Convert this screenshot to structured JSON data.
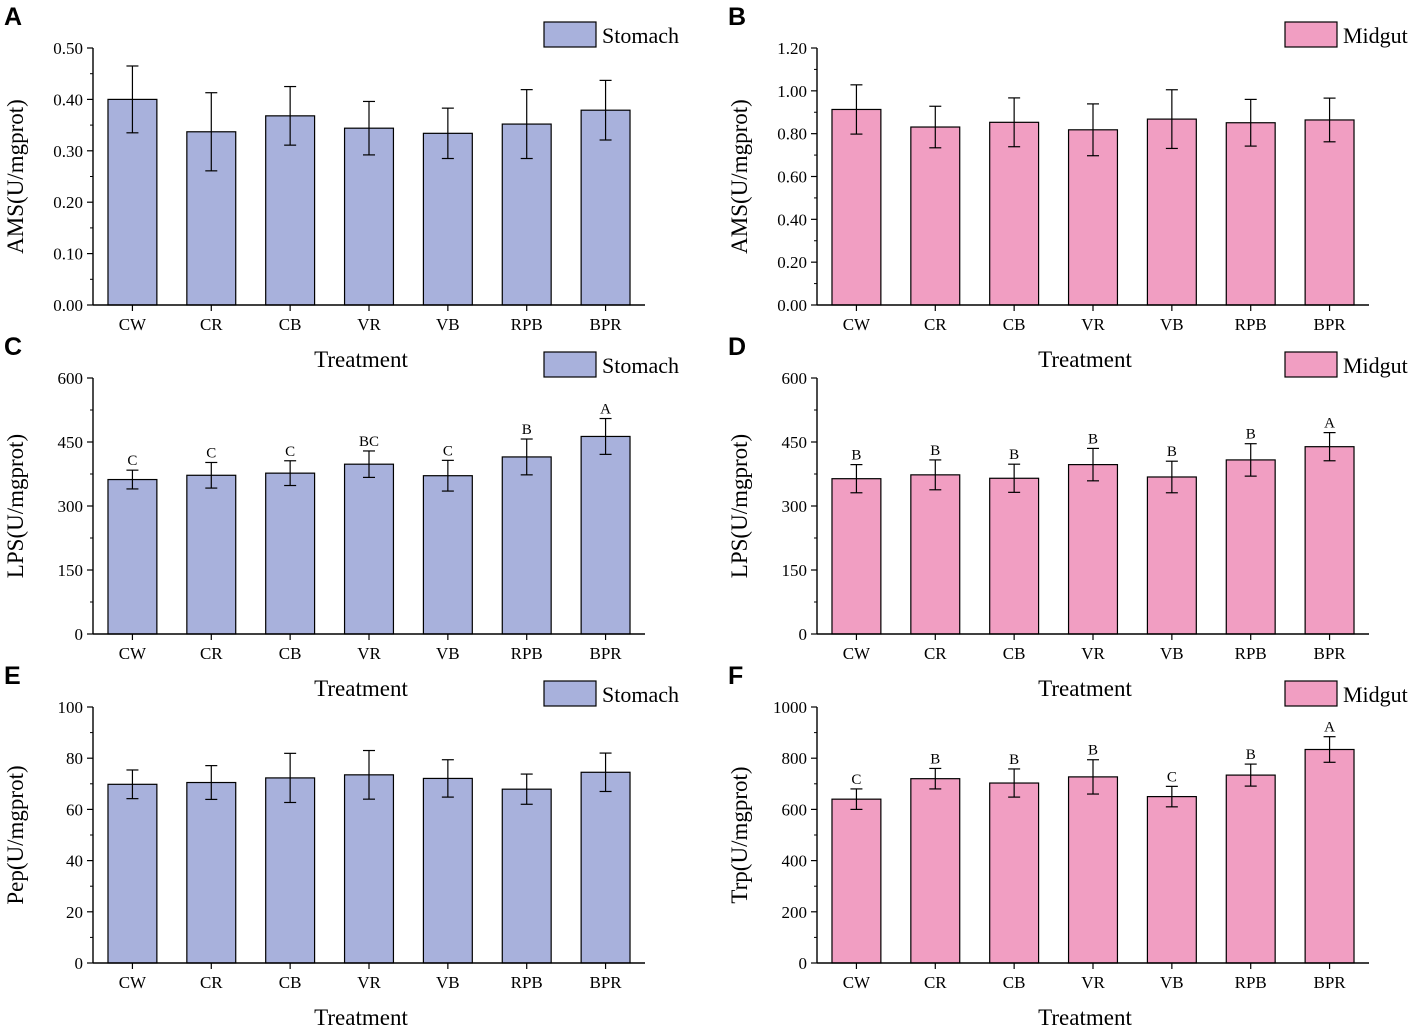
{
  "chart_data": [
    {
      "panel": "A",
      "type": "bar",
      "title": "",
      "legend": "Stomach",
      "color": "#a8b1dc",
      "xlabel": "Treatment",
      "ylabel": "AMS(U/mgprot)",
      "categories": [
        "CW",
        "CR",
        "CB",
        "VR",
        "VB",
        "RPB",
        "BPR"
      ],
      "values": [
        0.4,
        0.337,
        0.368,
        0.344,
        0.334,
        0.352,
        0.379
      ],
      "errors": [
        0.065,
        0.076,
        0.057,
        0.052,
        0.049,
        0.067,
        0.058
      ],
      "letters": [
        "",
        "",
        "",
        "",
        "",
        "",
        ""
      ],
      "ylim": [
        0,
        0.5
      ],
      "yticks": [
        "0.00",
        "0.10",
        "0.20",
        "0.30",
        "0.40",
        "0.50"
      ],
      "yticks_values": [
        0,
        0.1,
        0.2,
        0.3,
        0.4,
        0.5
      ]
    },
    {
      "panel": "B",
      "type": "bar",
      "title": "",
      "legend": "Midgut",
      "color": "#f19ec2",
      "xlabel": "Treatment",
      "ylabel": "AMS(U/mgprot)",
      "categories": [
        "CW",
        "CR",
        "CB",
        "VR",
        "VB",
        "RPB",
        "BPR"
      ],
      "values": [
        0.913,
        0.831,
        0.853,
        0.818,
        0.868,
        0.851,
        0.864
      ],
      "errors": [
        0.115,
        0.097,
        0.114,
        0.121,
        0.137,
        0.109,
        0.102
      ],
      "letters": [
        "",
        "",
        "",
        "",
        "",
        "",
        ""
      ],
      "ylim": [
        0,
        1.2
      ],
      "yticks": [
        "0.00",
        "0.20",
        "0.40",
        "0.60",
        "0.80",
        "1.00",
        "1.20"
      ],
      "yticks_values": [
        0,
        0.2,
        0.4,
        0.6,
        0.8,
        1.0,
        1.2
      ]
    },
    {
      "panel": "C",
      "type": "bar",
      "title": "",
      "legend": "Stomach",
      "color": "#a8b1dc",
      "xlabel": "Treatment",
      "ylabel": "LPS(U/mgprot)",
      "categories": [
        "CW",
        "CR",
        "CB",
        "VR",
        "VB",
        "RPB",
        "BPR"
      ],
      "values": [
        362,
        372,
        377,
        398,
        371,
        415,
        463
      ],
      "errors": [
        22,
        30,
        29,
        31,
        36,
        42,
        42
      ],
      "letters": [
        "C",
        "C",
        "C",
        "BC",
        "C",
        "B",
        "A"
      ],
      "ylim": [
        0,
        600
      ],
      "yticks": [
        "0",
        "150",
        "300",
        "450",
        "600"
      ],
      "yticks_values": [
        0,
        150,
        300,
        450,
        600
      ]
    },
    {
      "panel": "D",
      "type": "bar",
      "title": "",
      "legend": "Midgut",
      "color": "#f19ec2",
      "xlabel": "Treatment",
      "ylabel": "LPS(U/mgprot)",
      "categories": [
        "CW",
        "CR",
        "CB",
        "VR",
        "VB",
        "RPB",
        "BPR"
      ],
      "values": [
        364,
        373,
        365,
        397,
        368,
        408,
        439
      ],
      "errors": [
        33,
        35,
        33,
        38,
        37,
        38,
        33
      ],
      "letters": [
        "B",
        "B",
        "B",
        "B",
        "B",
        "B",
        "A"
      ],
      "ylim": [
        0,
        600
      ],
      "yticks": [
        "0",
        "150",
        "300",
        "450",
        "600"
      ],
      "yticks_values": [
        0,
        150,
        300,
        450,
        600
      ]
    },
    {
      "panel": "E",
      "type": "bar",
      "title": "",
      "legend": "Stomach",
      "color": "#a8b1dc",
      "xlabel": "Treatment",
      "ylabel": "Pep(U/mgprot)",
      "categories": [
        "CW",
        "CR",
        "CB",
        "VR",
        "VB",
        "RPB",
        "BPR"
      ],
      "values": [
        69.8,
        70.5,
        72.3,
        73.5,
        72.1,
        67.9,
        74.5
      ],
      "errors": [
        5.6,
        6.6,
        9.6,
        9.5,
        7.3,
        5.9,
        7.5
      ],
      "letters": [
        "",
        "",
        "",
        "",
        "",
        "",
        ""
      ],
      "ylim": [
        0,
        100
      ],
      "yticks": [
        "0",
        "20",
        "40",
        "60",
        "80",
        "100"
      ],
      "yticks_values": [
        0,
        20,
        40,
        60,
        80,
        100
      ]
    },
    {
      "panel": "F",
      "type": "bar",
      "title": "",
      "legend": "Midgut",
      "color": "#f19ec2",
      "xlabel": "Treatment",
      "ylabel": "Trp(U/mgprot)",
      "categories": [
        "CW",
        "CR",
        "CB",
        "VR",
        "VB",
        "RPB",
        "BPR"
      ],
      "values": [
        640,
        720,
        703,
        727,
        650,
        734,
        834
      ],
      "errors": [
        40,
        40,
        55,
        67,
        40,
        43,
        50
      ],
      "letters": [
        "C",
        "B",
        "B",
        "B",
        "C",
        "B",
        "A"
      ],
      "ylim": [
        0,
        1000
      ],
      "yticks": [
        "0",
        "200",
        "400",
        "600",
        "800",
        "1000"
      ],
      "yticks_values": [
        0,
        200,
        400,
        600,
        800,
        1000
      ]
    }
  ]
}
